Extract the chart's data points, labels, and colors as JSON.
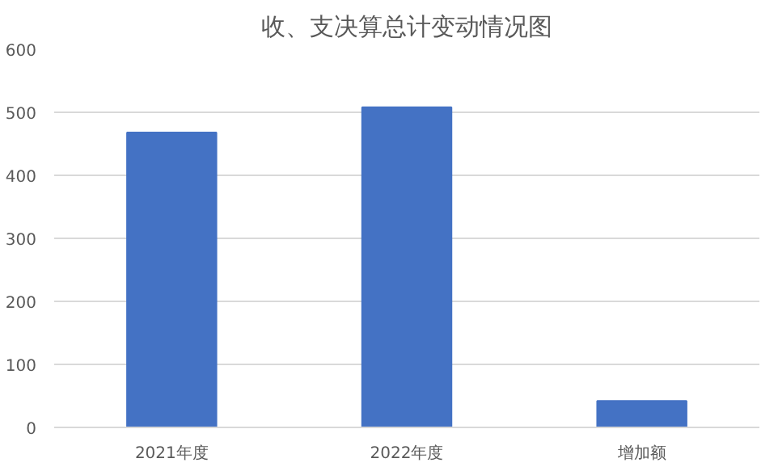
{
  "chart_data": {
    "type": "bar",
    "title": "收、支决算总计变动情况图",
    "categories": [
      "2021年度",
      "2022年度",
      "增加额"
    ],
    "values": [
      468,
      508,
      42
    ],
    "color": "#4472c4",
    "ylim": [
      0,
      600
    ],
    "yticks": [
      0,
      100,
      200,
      300,
      400,
      500,
      600
    ],
    "grid": "y"
  }
}
